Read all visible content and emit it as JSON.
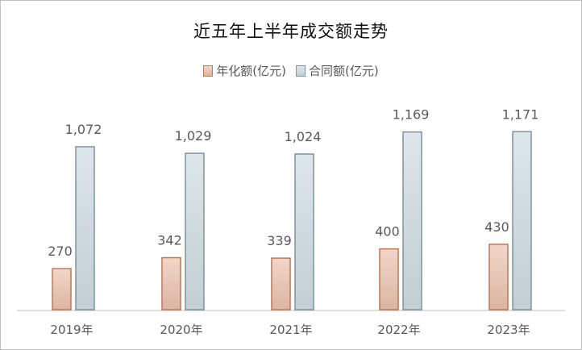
{
  "chart_data": {
    "type": "bar",
    "title": "近五年上半年成交额走势",
    "categories": [
      "2019年",
      "2020年",
      "2021年",
      "2022年",
      "2023年"
    ],
    "series": [
      {
        "name": "年化额(亿元)",
        "values": [
          270,
          342,
          339,
          400,
          430
        ],
        "labels": [
          "270",
          "342",
          "339",
          "400",
          "430"
        ],
        "fill_top": "#f2d6c9",
        "fill_bottom": "#dcb5a1",
        "stroke": "#b87a5a"
      },
      {
        "name": "合同额(亿元)",
        "values": [
          1072,
          1029,
          1024,
          1169,
          1171
        ],
        "labels": [
          "1,072",
          "1,029",
          "1,024",
          "1,169",
          "1,171"
        ],
        "fill_top": "#dde6e8",
        "fill_bottom": "#c3cfd3",
        "stroke": "#7d949c"
      }
    ],
    "ylim": [
      0,
      1400
    ],
    "legend_position": "top-center",
    "grid": false
  }
}
